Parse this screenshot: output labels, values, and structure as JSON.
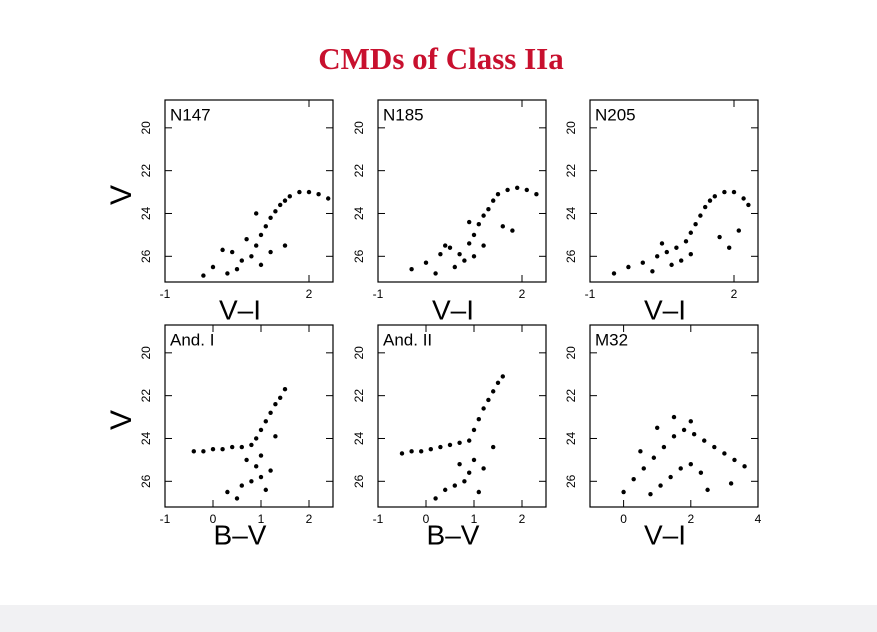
{
  "slide": {
    "title": "CMDs of Class IIa"
  },
  "chart_data": [
    {
      "type": "scatter",
      "title": "N147",
      "xlabel": "V–I",
      "ylabel": "V",
      "color": "#000000",
      "xlim": [
        -1,
        2.5
      ],
      "ylim": [
        27.2,
        18.7
      ],
      "xticks": [
        -1,
        2
      ],
      "yticks": [
        20,
        22,
        24,
        26
      ],
      "x": [
        0.0,
        0.2,
        0.4,
        0.6,
        0.8,
        0.9,
        1.0,
        1.1,
        1.2,
        1.3,
        1.4,
        1.5,
        1.6,
        1.8,
        2.0,
        2.2,
        2.4,
        0.3,
        0.5,
        1.0,
        1.2,
        0.7,
        -0.2,
        1.5,
        0.9
      ],
      "y": [
        26.5,
        25.7,
        25.8,
        26.2,
        26.0,
        25.5,
        25.0,
        24.6,
        24.2,
        23.9,
        23.6,
        23.4,
        23.2,
        23.0,
        23.0,
        23.1,
        23.3,
        26.8,
        26.6,
        26.4,
        25.8,
        25.2,
        26.9,
        25.5,
        24.0
      ]
    },
    {
      "type": "scatter",
      "title": "N185",
      "xlabel": "V–I",
      "color": "#000000",
      "xlim": [
        -1,
        2.5
      ],
      "ylim": [
        27.2,
        18.7
      ],
      "xticks": [
        -1,
        2
      ],
      "yticks": [
        20,
        22,
        24,
        26
      ],
      "x": [
        -0.3,
        0.0,
        0.3,
        0.5,
        0.7,
        0.9,
        1.0,
        1.1,
        1.2,
        1.3,
        1.4,
        1.5,
        1.7,
        1.9,
        2.1,
        2.3,
        0.2,
        0.6,
        0.8,
        1.0,
        1.2,
        1.6,
        0.4,
        1.8,
        0.9
      ],
      "y": [
        26.6,
        26.3,
        25.9,
        25.6,
        25.9,
        25.4,
        25.0,
        24.5,
        24.1,
        23.8,
        23.4,
        23.1,
        22.9,
        22.8,
        22.9,
        23.1,
        26.8,
        26.5,
        26.2,
        26.0,
        25.5,
        24.6,
        25.5,
        24.8,
        24.4
      ]
    },
    {
      "type": "scatter",
      "title": "N205",
      "xlabel": "V–I",
      "color": "#000000",
      "xlim": [
        -1,
        2.5
      ],
      "ylim": [
        27.2,
        18.7
      ],
      "xticks": [
        -1,
        2
      ],
      "yticks": [
        20,
        22,
        24,
        26
      ],
      "x": [
        -0.5,
        -0.2,
        0.1,
        0.4,
        0.6,
        0.8,
        1.0,
        1.1,
        1.2,
        1.3,
        1.4,
        1.5,
        1.6,
        1.8,
        2.0,
        2.2,
        2.3,
        0.3,
        0.7,
        0.9,
        1.1,
        1.7,
        2.1,
        0.5,
        1.9
      ],
      "y": [
        26.8,
        26.5,
        26.3,
        26.0,
        25.8,
        25.6,
        25.3,
        24.9,
        24.5,
        24.1,
        23.7,
        23.4,
        23.2,
        23.0,
        23.0,
        23.3,
        23.6,
        26.7,
        26.4,
        26.2,
        25.9,
        25.1,
        24.8,
        25.4,
        25.6
      ]
    },
    {
      "type": "scatter",
      "title": "And. I",
      "xlabel": "B–V",
      "ylabel": "V",
      "color": "#000000",
      "xlim": [
        -1,
        2.5
      ],
      "ylim": [
        27.2,
        18.7
      ],
      "xticks": [
        -1,
        0,
        1,
        2
      ],
      "yticks": [
        20,
        22,
        24,
        26
      ],
      "x": [
        -0.4,
        -0.2,
        0.0,
        0.2,
        0.4,
        0.6,
        0.8,
        0.9,
        1.0,
        1.0,
        1.1,
        1.2,
        1.3,
        1.4,
        1.5,
        0.9,
        1.0,
        0.3,
        0.6,
        0.8,
        1.1,
        0.5,
        1.2,
        0.7,
        1.3
      ],
      "y": [
        24.6,
        24.6,
        24.5,
        24.5,
        24.4,
        24.4,
        24.3,
        24.0,
        23.6,
        24.8,
        23.2,
        22.8,
        22.4,
        22.1,
        21.7,
        25.3,
        25.8,
        26.5,
        26.2,
        26.0,
        26.4,
        26.8,
        25.5,
        25.0,
        23.9
      ]
    },
    {
      "type": "scatter",
      "title": "And. II",
      "xlabel": "B–V",
      "color": "#000000",
      "xlim": [
        -1,
        2.5
      ],
      "ylim": [
        27.2,
        18.7
      ],
      "xticks": [
        -1,
        0,
        1,
        2
      ],
      "yticks": [
        20,
        22,
        24,
        26
      ],
      "x": [
        -0.5,
        -0.3,
        -0.1,
        0.1,
        0.3,
        0.5,
        0.7,
        0.9,
        1.0,
        1.0,
        1.1,
        1.2,
        1.3,
        1.4,
        1.5,
        1.6,
        0.9,
        0.4,
        0.6,
        0.8,
        1.1,
        0.2,
        1.2,
        0.7,
        1.4
      ],
      "y": [
        24.7,
        24.6,
        24.6,
        24.5,
        24.4,
        24.3,
        24.2,
        24.1,
        23.6,
        25.0,
        23.1,
        22.6,
        22.2,
        21.8,
        21.4,
        21.1,
        25.6,
        26.4,
        26.2,
        26.0,
        26.5,
        26.8,
        25.4,
        25.2,
        24.4
      ]
    },
    {
      "type": "scatter",
      "title": "M32",
      "xlabel": "V–I",
      "color": "#000000",
      "xlim": [
        -1,
        4
      ],
      "ylim": [
        27.2,
        18.7
      ],
      "xticks": [
        0,
        2,
        4
      ],
      "yticks": [
        20,
        22,
        24,
        26
      ],
      "x": [
        0.0,
        0.3,
        0.6,
        0.9,
        1.2,
        1.5,
        1.8,
        2.1,
        2.4,
        2.7,
        3.0,
        3.3,
        3.6,
        0.8,
        1.1,
        1.4,
        1.7,
        2.0,
        2.3,
        1.0,
        1.5,
        2.0,
        2.5,
        3.2,
        0.5
      ],
      "y": [
        26.5,
        25.9,
        25.4,
        24.9,
        24.4,
        23.9,
        23.6,
        23.8,
        24.1,
        24.4,
        24.7,
        25.0,
        25.3,
        26.6,
        26.2,
        25.8,
        25.4,
        25.2,
        25.6,
        23.5,
        23.0,
        23.2,
        26.4,
        26.1,
        24.6
      ]
    }
  ]
}
